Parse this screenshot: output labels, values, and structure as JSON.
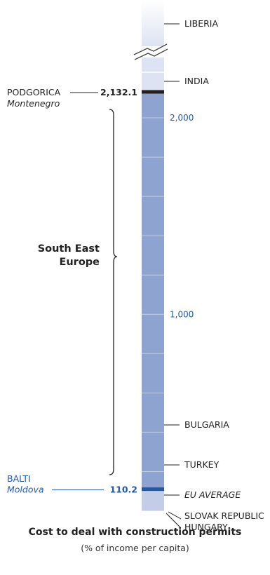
{
  "chart_data": {
    "type": "bar",
    "title": "Cost to deal with construction permits",
    "subtitle": "(% of income per capita)",
    "value_axis": {
      "ticks": [
        1000,
        2000
      ],
      "tick_labels": [
        "1,000",
        "2,000"
      ],
      "minor_step": 200,
      "range": [
        0,
        2132.1
      ],
      "broken_above": true
    },
    "markers": [
      {
        "label": "PODGORICA",
        "sublabel": "Montenegro",
        "value": 2132.1,
        "value_label": "2,132.1"
      },
      {
        "label": "BALTI",
        "sublabel": "Moldova",
        "value": 110.2,
        "value_label": "110.2"
      }
    ],
    "comparators": [
      {
        "label": "LIBERIA",
        "value": null
      },
      {
        "label": "INDIA",
        "value": 2200
      },
      {
        "label": "BULGARIA",
        "value": 420
      },
      {
        "label": "TURKEY",
        "value": 210
      },
      {
        "label": "EU AVERAGE",
        "value": 100
      },
      {
        "label": "SLOVAK REPUBLIC",
        "value": 12
      },
      {
        "label": "HUNGARY",
        "value": 8
      }
    ],
    "group": {
      "label_lines": [
        "South East",
        "Europe"
      ],
      "range": [
        110.2,
        2132.1
      ]
    },
    "colors": {
      "range_fill": "#8fa3d1",
      "track_fill": "#c3cde8",
      "top_fill": "#dde3f2",
      "max_marker": "#231f20",
      "min_marker": "#1f5aa6",
      "label_blue": "#1f5aa6",
      "text": "#222222"
    }
  }
}
